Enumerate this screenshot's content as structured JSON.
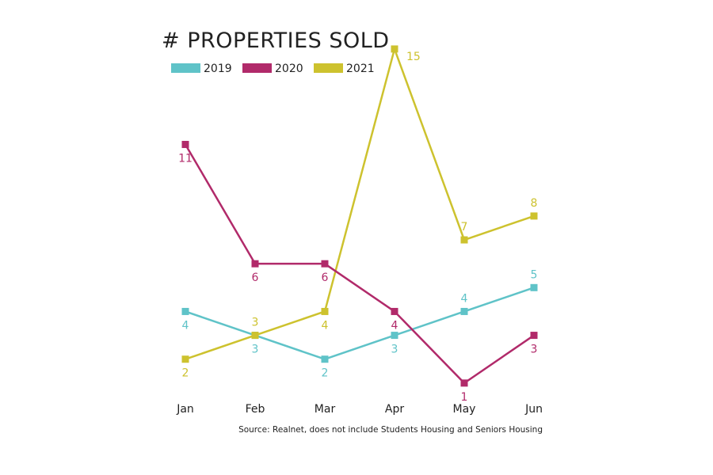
{
  "chart_data": {
    "type": "line",
    "title": "# PROPERTIES SOLD",
    "xlabel": "",
    "ylabel": "",
    "categories": [
      "Jan",
      "Feb",
      "Mar",
      "Apr",
      "May",
      "Jun"
    ],
    "ylim": [
      0,
      15
    ],
    "grid": false,
    "legend_position": "top-left",
    "series": [
      {
        "name": "2019",
        "color": "#5fc3c8",
        "values": [
          4,
          3,
          2,
          3,
          4,
          5
        ],
        "label_side": [
          "below",
          "below",
          "below",
          "below",
          "above",
          "above"
        ]
      },
      {
        "name": "2020",
        "color": "#b12a6a",
        "values": [
          11,
          6,
          6,
          4,
          1,
          3
        ],
        "label_side": [
          "below",
          "below",
          "below",
          "below",
          "below",
          "below"
        ]
      },
      {
        "name": "2021",
        "color": "#cdc22e",
        "values": [
          2,
          3,
          4,
          15,
          7,
          8
        ],
        "label_side": [
          "below",
          "above",
          "below",
          "right",
          "above",
          "above"
        ]
      }
    ],
    "source": "Source: Realnet, does not include Students Housing and Seniors Housing"
  }
}
